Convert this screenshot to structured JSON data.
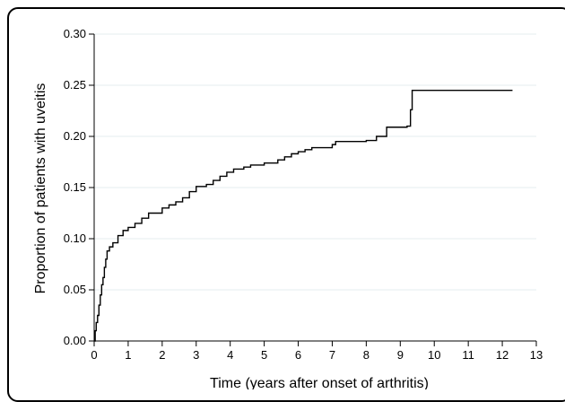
{
  "chart_data": {
    "type": "line",
    "subtype": "step",
    "title": "",
    "xlabel": "Time (years after onset of arthritis)",
    "ylabel": "Proportion of patients with uveitis",
    "xlim": [
      0,
      13
    ],
    "ylim": [
      0,
      0.3
    ],
    "x_ticks": [
      0,
      1,
      2,
      3,
      4,
      5,
      6,
      7,
      8,
      9,
      10,
      11,
      12,
      13
    ],
    "y_ticks": [
      0.0,
      0.05,
      0.1,
      0.15,
      0.2,
      0.25,
      0.3
    ],
    "y_tick_labels": [
      "0.00",
      "0.05",
      "0.10",
      "0.15",
      "0.20",
      "0.25",
      "0.30"
    ],
    "grid": "horizontal",
    "series": [
      {
        "color": "#000000",
        "x": [
          0.0,
          0.03,
          0.06,
          0.1,
          0.14,
          0.18,
          0.22,
          0.26,
          0.3,
          0.34,
          0.38,
          0.45,
          0.55,
          0.7,
          0.85,
          1.0,
          1.2,
          1.4,
          1.6,
          2.0,
          2.2,
          2.4,
          2.6,
          2.8,
          3.0,
          3.3,
          3.5,
          3.7,
          3.9,
          4.1,
          4.4,
          4.6,
          5.0,
          5.4,
          5.6,
          5.8,
          6.0,
          6.2,
          6.4,
          7.0,
          7.1,
          8.0,
          8.3,
          8.6,
          9.2,
          9.3,
          9.35,
          12.3
        ],
        "y": [
          0.0,
          0.01,
          0.018,
          0.025,
          0.035,
          0.045,
          0.055,
          0.062,
          0.072,
          0.08,
          0.088,
          0.092,
          0.096,
          0.103,
          0.108,
          0.111,
          0.115,
          0.12,
          0.125,
          0.13,
          0.133,
          0.136,
          0.14,
          0.146,
          0.151,
          0.153,
          0.157,
          0.161,
          0.165,
          0.168,
          0.17,
          0.172,
          0.174,
          0.177,
          0.18,
          0.183,
          0.185,
          0.187,
          0.189,
          0.192,
          0.195,
          0.196,
          0.2,
          0.209,
          0.21,
          0.226,
          0.245,
          0.245
        ]
      }
    ]
  }
}
